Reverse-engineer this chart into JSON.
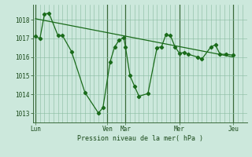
{
  "background_color": "#cce8dc",
  "grid_color": "#88bba0",
  "line_color": "#1a6b1a",
  "title": "Pression niveau de la mer( hPa )",
  "ylim": [
    1012.5,
    1018.8
  ],
  "yticks": [
    1013,
    1014,
    1015,
    1016,
    1017,
    1018
  ],
  "day_labels": [
    "Lun",
    "Ven",
    "Mar",
    "Mer",
    "Jeu"
  ],
  "day_positions": [
    0.0,
    8.0,
    10.0,
    16.0,
    22.0
  ],
  "xlim": [
    -0.3,
    23.5
  ],
  "series1_x": [
    0.0,
    0.5,
    1.0,
    1.5,
    2.5,
    3.0,
    4.0,
    5.5,
    7.0,
    7.5,
    8.3,
    8.8,
    9.3,
    9.8,
    10.0,
    10.5,
    11.0,
    11.5,
    12.5,
    13.5,
    14.0,
    14.5,
    15.0,
    15.5,
    16.0,
    16.5,
    17.0,
    18.0,
    18.5,
    19.5,
    20.0,
    20.5,
    21.2,
    22.0
  ],
  "series1_y": [
    1017.1,
    1017.0,
    1018.3,
    1018.35,
    1017.15,
    1017.15,
    1016.3,
    1014.1,
    1013.0,
    1013.3,
    1015.75,
    1016.55,
    1016.9,
    1017.05,
    1016.55,
    1015.0,
    1014.45,
    1013.9,
    1014.05,
    1016.5,
    1016.55,
    1017.2,
    1017.15,
    1016.55,
    1016.2,
    1016.25,
    1016.15,
    1016.0,
    1015.9,
    1016.55,
    1016.65,
    1016.15,
    1016.15,
    1016.1
  ],
  "trend_x": [
    0.0,
    22.0
  ],
  "trend_y": [
    1018.05,
    1016.0
  ]
}
